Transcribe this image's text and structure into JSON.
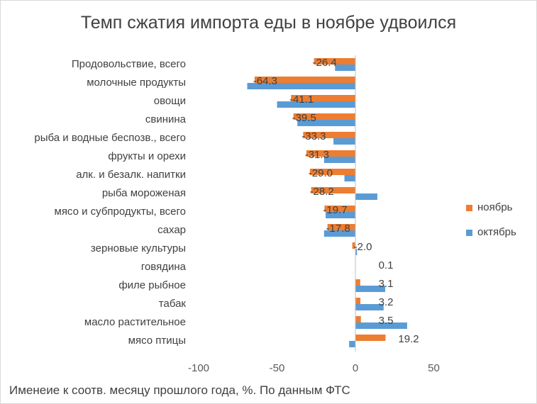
{
  "chart_data": {
    "type": "bar",
    "orientation": "horizontal",
    "title": "Темп сжатия импорта еды в ноябре удвоился",
    "footnote": "Именеие  к соотв. месяцу прошлого года, %. По данным ФТС",
    "categories": [
      "Продовольствие, всего",
      "молочные продукты",
      "овощи",
      "свинина",
      "рыба и водные беспозв., всего",
      "фрукты и орехи",
      "алк. и безалк.  напитки",
      "рыба мороженая",
      "мясо и субпродукты, всего",
      "сахар",
      "зерновые культуры",
      "говядина",
      "филе рыбное",
      "табак",
      "масло растительное",
      "мясо птицы"
    ],
    "series": [
      {
        "name": "ноябрь",
        "color": "#ed7d31",
        "values": [
          -26.4,
          -64.3,
          -41.1,
          -39.5,
          -33.3,
          -31.3,
          -29.0,
          -28.2,
          -19.7,
          -17.8,
          -2.0,
          0.1,
          3.1,
          3.2,
          3.5,
          19.2
        ],
        "data_labels": [
          "-26.4",
          "-64.3",
          "-41.1",
          "-39.5",
          "-33.3",
          "-31.3",
          "-29.0",
          "-28.2",
          "-19.7",
          "-17.8",
          "-2.0",
          "0.1",
          "3.1",
          "3.2",
          "3.5",
          "19.2"
        ]
      },
      {
        "name": "октябрь",
        "color": "#5b9bd5",
        "values": [
          -13,
          -69,
          -50,
          -37,
          -14,
          -20,
          -7,
          14,
          -19,
          -20,
          1,
          0,
          19,
          18,
          33,
          -4
        ]
      }
    ],
    "xlim": [
      -100,
      60
    ],
    "xticks": [
      -100,
      -50,
      0,
      50
    ],
    "xtick_labels": [
      "-100",
      "-50",
      "0",
      "50"
    ],
    "xlabel": "",
    "ylabel": "",
    "grid": false,
    "legend_position": "right"
  }
}
